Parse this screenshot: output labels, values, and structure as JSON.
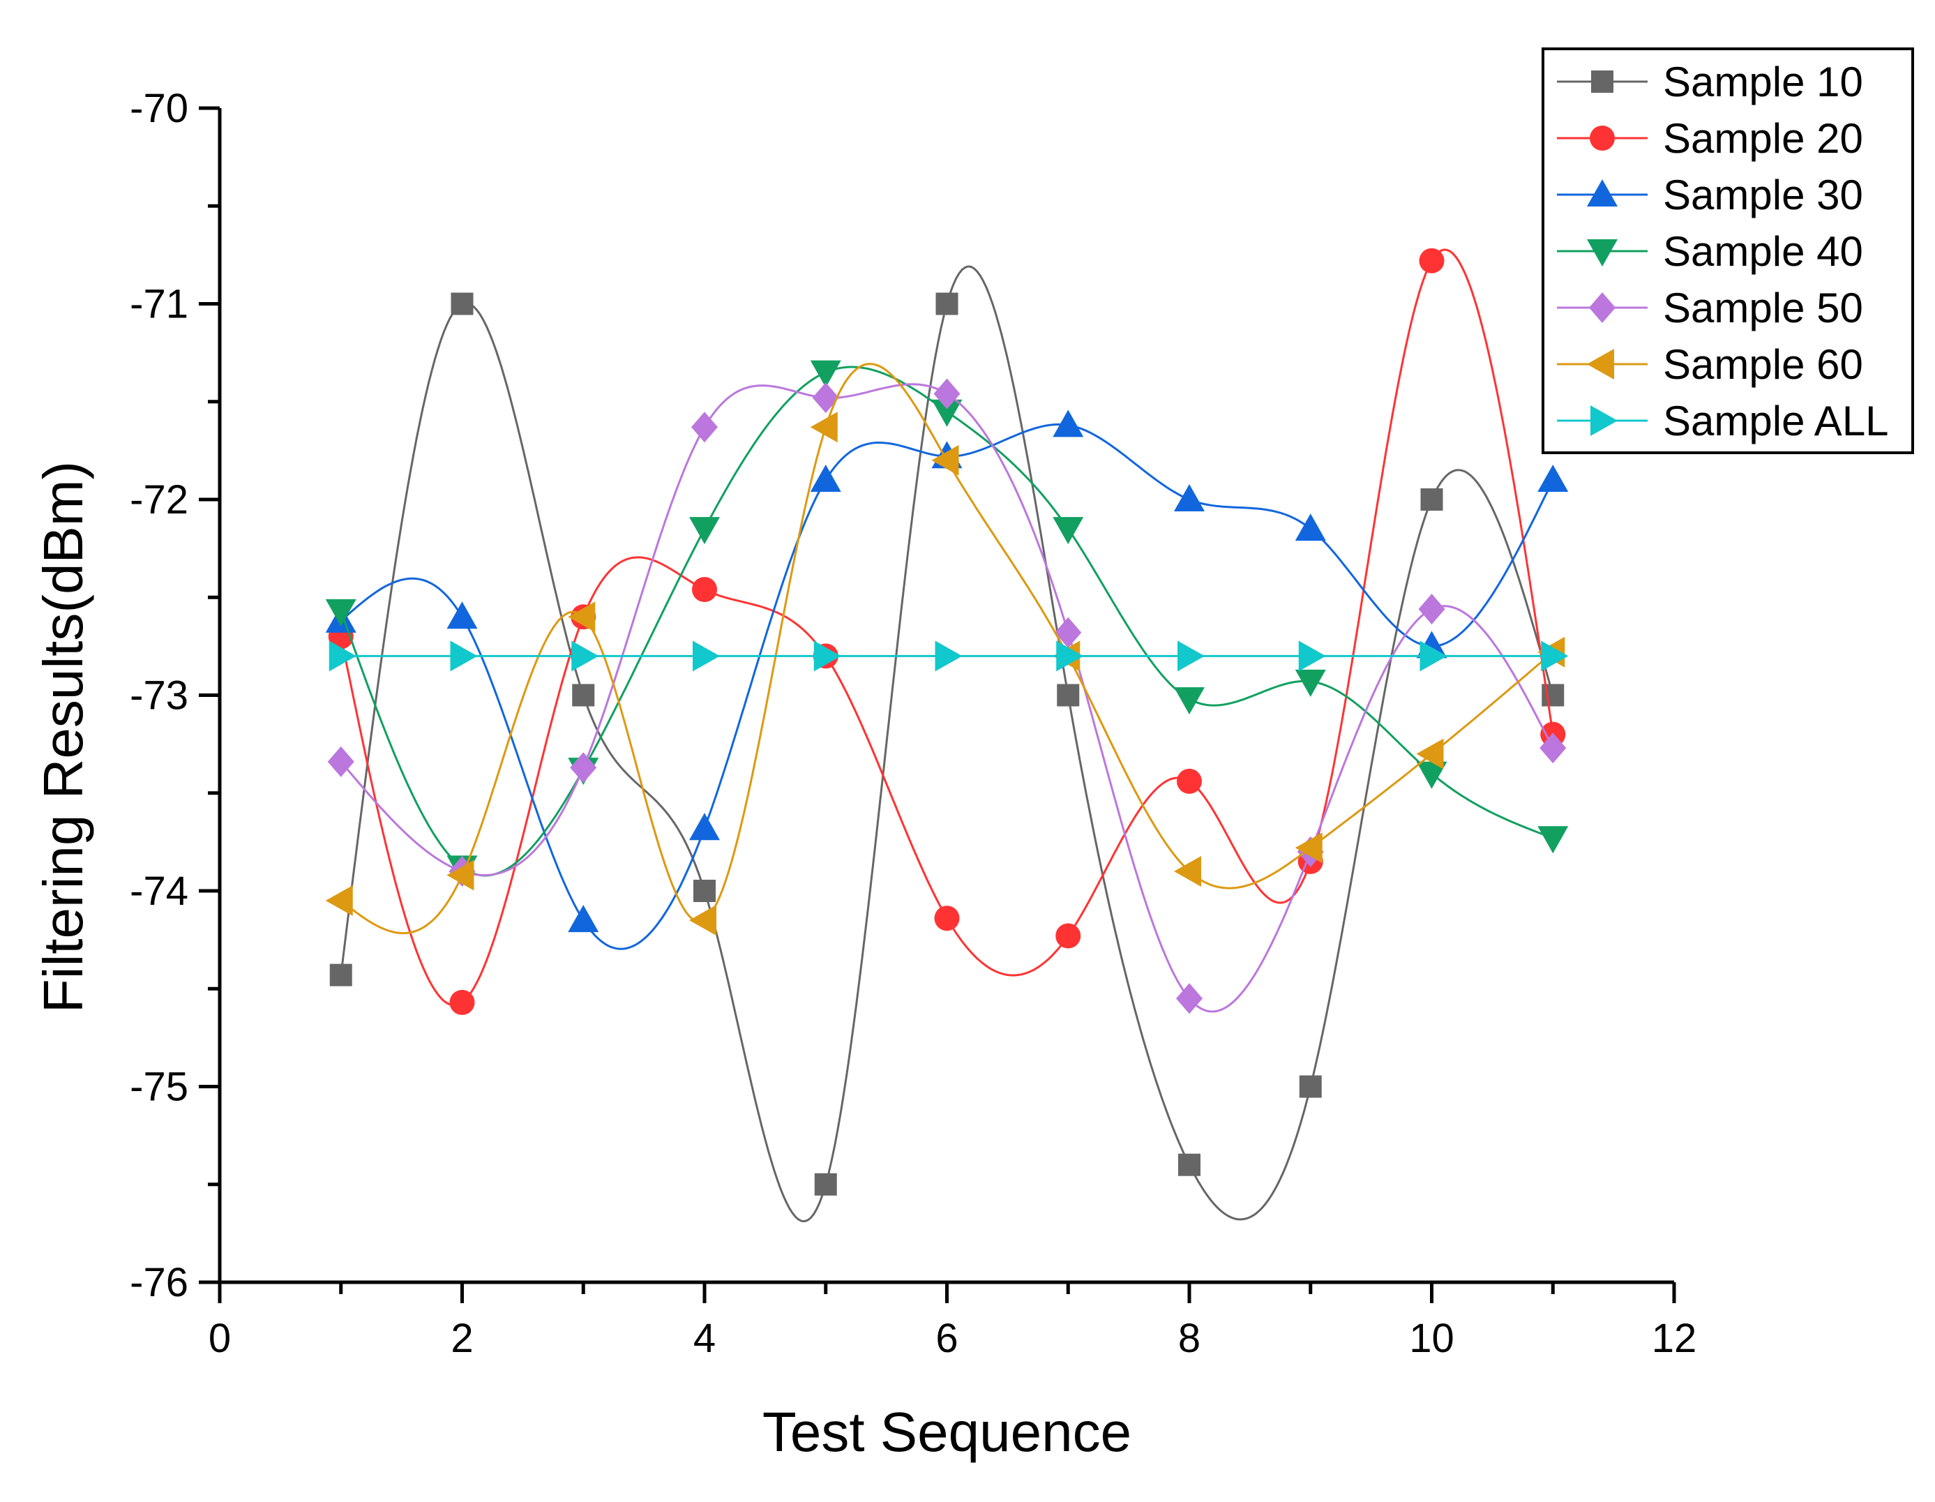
{
  "chart_data": {
    "type": "line",
    "title": "",
    "xlabel": "Test Sequence",
    "ylabel": "Filtering Results(dBm)",
    "xlim": [
      0,
      12
    ],
    "ylim": [
      -76,
      -70
    ],
    "xticks": [
      0,
      2,
      4,
      6,
      8,
      10,
      12
    ],
    "xtick_labels": [
      "0",
      "2",
      "4",
      "6",
      "8",
      "10",
      "12"
    ],
    "yticks": [
      -76,
      -75,
      -74,
      -73,
      -72,
      -71,
      -70
    ],
    "ytick_labels": [
      "-76",
      "-75",
      "-74",
      "-73",
      "-72",
      "-71",
      "-70"
    ],
    "grid": false,
    "legend_position": "top-right",
    "x": [
      1,
      2,
      3,
      4,
      5,
      6,
      7,
      8,
      9,
      10,
      11
    ],
    "series": [
      {
        "name": "Sample 10",
        "marker": "square",
        "color": "#666666",
        "values": [
          -74.43,
          -71.0,
          -73.0,
          -74.0,
          -75.5,
          -71.0,
          -73.0,
          -75.4,
          -75.0,
          -72.0,
          -73.0
        ]
      },
      {
        "name": "Sample 20",
        "marker": "circle",
        "color": "#ff3333",
        "values": [
          -72.7,
          -74.57,
          -72.6,
          -72.46,
          -72.8,
          -74.14,
          -74.23,
          -73.44,
          -73.85,
          -70.78,
          -73.2
        ]
      },
      {
        "name": "Sample 30",
        "marker": "triangle-up",
        "color": "#1166dd",
        "values": [
          -72.62,
          -72.6,
          -74.15,
          -73.68,
          -71.9,
          -71.78,
          -71.62,
          -72.0,
          -72.15,
          -72.75,
          -71.9
        ]
      },
      {
        "name": "Sample 40",
        "marker": "triangle-down",
        "color": "#11a060",
        "values": [
          -72.57,
          -73.88,
          -73.38,
          -72.15,
          -71.35,
          -71.55,
          -72.15,
          -73.02,
          -72.93,
          -73.4,
          -73.73
        ]
      },
      {
        "name": "Sample 50",
        "marker": "diamond",
        "color": "#bb77dd",
        "values": [
          -73.34,
          -73.9,
          -73.37,
          -71.63,
          -71.48,
          -71.46,
          -72.68,
          -74.55,
          -73.8,
          -72.56,
          -73.27
        ]
      },
      {
        "name": "Sample 60",
        "marker": "triangle-left",
        "color": "#dd9911",
        "values": [
          -74.05,
          -73.92,
          -72.6,
          -74.15,
          -71.63,
          -71.8,
          -72.8,
          -73.9,
          -73.78,
          -73.3,
          -72.78
        ]
      },
      {
        "name": "Sample ALL",
        "marker": "triangle-right",
        "color": "#11c8cc",
        "values": [
          -72.8,
          -72.8,
          -72.8,
          -72.8,
          -72.8,
          -72.8,
          -72.8,
          -72.8,
          -72.8,
          -72.8,
          -72.8
        ]
      }
    ]
  }
}
